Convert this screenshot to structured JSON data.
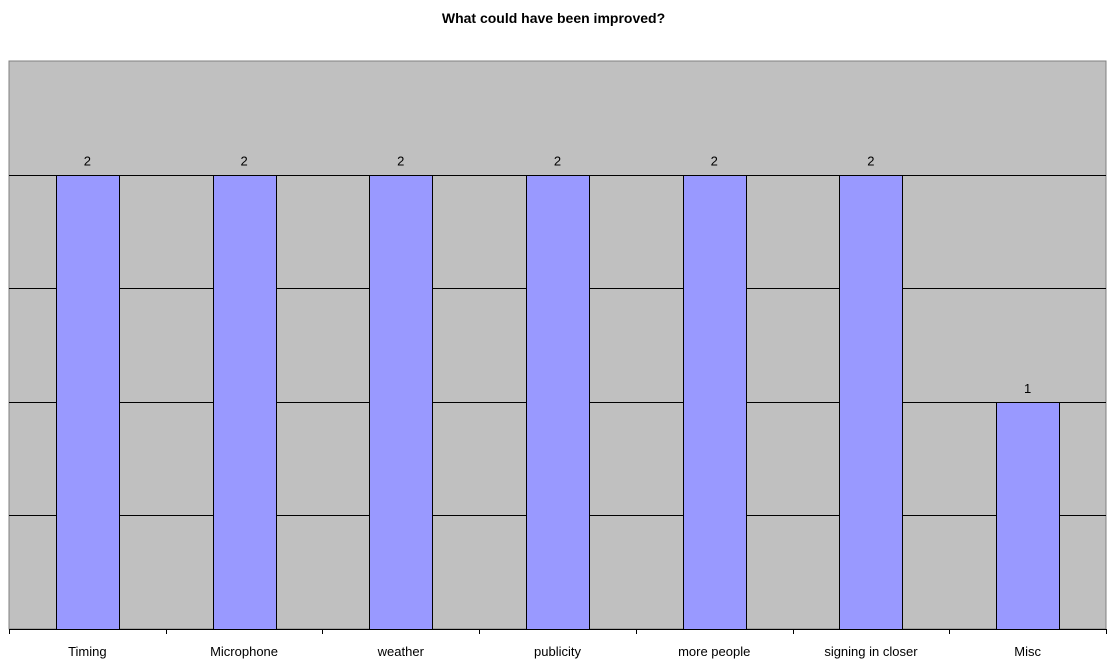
{
  "chart_data": {
    "type": "bar",
    "title": "What could have been improved?",
    "categories": [
      "Timing",
      "Microphone",
      "weather",
      "publicity",
      "more people",
      "signing in closer",
      "Misc"
    ],
    "values": [
      2,
      2,
      2,
      2,
      2,
      2,
      1
    ],
    "data_labels": [
      "2",
      "2",
      "2",
      "2",
      "2",
      "2",
      "1"
    ],
    "xlabel": "",
    "ylabel": "",
    "ylim": [
      0,
      2.5
    ],
    "grid": true,
    "gridline_step": 0.5,
    "legend": "none",
    "colors": {
      "plot_background": "#c0c0c0",
      "bar_fill": "#9999ff",
      "bar_stroke": "#000000",
      "gridline": "#000000"
    }
  }
}
